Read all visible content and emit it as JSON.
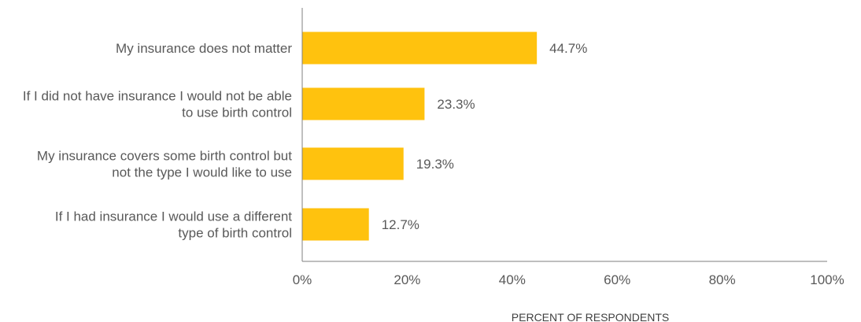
{
  "chart_data": {
    "type": "bar",
    "orientation": "horizontal",
    "categories": [
      [
        "My insurance does not matter"
      ],
      [
        "If I did not have insurance I would not be able",
        "to use birth control"
      ],
      [
        "My insurance covers some birth  control but",
        "not the type I would like to use"
      ],
      [
        "If I had insurance I would use a different",
        "type of  birth control"
      ]
    ],
    "values": [
      44.7,
      23.3,
      19.3,
      12.7
    ],
    "value_labels": [
      "44.7%",
      "23.3%",
      "19.3%",
      "12.7%"
    ],
    "xlim": [
      0,
      100
    ],
    "xticks": [
      0,
      20,
      40,
      60,
      80,
      100
    ],
    "xtick_labels": [
      "0%",
      "20%",
      "40%",
      "60%",
      "80%",
      "100%"
    ],
    "xlabel": "PERCENT OF RESPONDENTS",
    "ylabel": "",
    "title": "",
    "grid": false,
    "legend": "none",
    "bar_color": "#FFC20E",
    "axis_color": "#7F7F7F",
    "text_color": "#595959"
  }
}
